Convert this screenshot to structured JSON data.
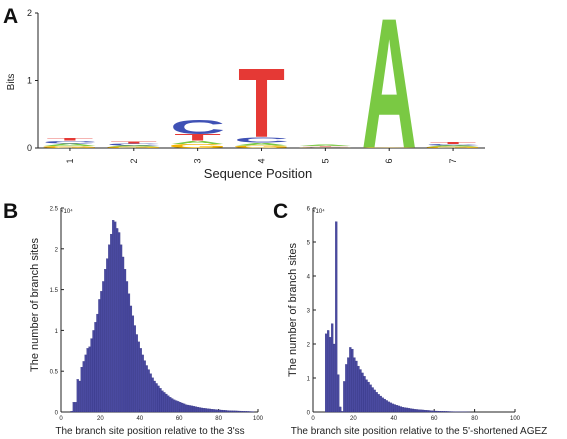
{
  "panels": {
    "a": {
      "letter": "A"
    },
    "b": {
      "letter": "B"
    },
    "c": {
      "letter": "C"
    }
  },
  "chart_data": [
    {
      "panel": "A",
      "type": "sequence-logo",
      "xlabel": "Sequence Position",
      "ylabel": "Bits",
      "ylim": [
        0,
        2
      ],
      "yticks": [
        "0",
        "1",
        "2"
      ],
      "categories": [
        "1",
        "2",
        "3",
        "4",
        "5",
        "6",
        "7"
      ],
      "letter_colors": {
        "A": "#7ac943",
        "C": "#3f51b5",
        "G": "#f4b400",
        "T": "#e53935"
      },
      "positions": [
        {
          "position": "1",
          "letters": [
            {
              "base": "G",
              "bits": 0.03
            },
            {
              "base": "A",
              "bits": 0.04
            },
            {
              "base": "C",
              "bits": 0.04
            },
            {
              "base": "T",
              "bits": 0.04
            }
          ]
        },
        {
          "position": "2",
          "letters": [
            {
              "base": "G",
              "bits": 0.02
            },
            {
              "base": "A",
              "bits": 0.02
            },
            {
              "base": "C",
              "bits": 0.03
            },
            {
              "base": "T",
              "bits": 0.03
            }
          ]
        },
        {
          "position": "3",
          "letters": [
            {
              "base": "G",
              "bits": 0.06
            },
            {
              "base": "A",
              "bits": 0.05
            },
            {
              "base": "T",
              "bits": 0.1
            },
            {
              "base": "C",
              "bits": 0.22
            }
          ]
        },
        {
          "position": "4",
          "letters": [
            {
              "base": "G",
              "bits": 0.04
            },
            {
              "base": "A",
              "bits": 0.04
            },
            {
              "base": "C",
              "bits": 0.08
            },
            {
              "base": "T",
              "bits": 1.05
            }
          ]
        },
        {
          "position": "5",
          "letters": [
            {
              "base": "G",
              "bits": 0.01
            },
            {
              "base": "C",
              "bits": 0.01
            },
            {
              "base": "T",
              "bits": 0.01
            },
            {
              "base": "A",
              "bits": 0.02
            }
          ]
        },
        {
          "position": "6",
          "letters": [
            {
              "base": "G",
              "bits": 0.01
            },
            {
              "base": "A",
              "bits": 1.98
            }
          ]
        },
        {
          "position": "7",
          "letters": [
            {
              "base": "G",
              "bits": 0.02
            },
            {
              "base": "A",
              "bits": 0.02
            },
            {
              "base": "C",
              "bits": 0.02
            },
            {
              "base": "T",
              "bits": 0.03
            }
          ]
        }
      ]
    },
    {
      "panel": "B",
      "type": "bar",
      "xlabel": "The branch site position relative to the 3'ss",
      "ylabel": "The number of branch sites",
      "xlim": [
        0,
        100
      ],
      "ylim": [
        0,
        2.5
      ],
      "exponent_label": "×10⁴",
      "xticks": [
        "0",
        "20",
        "40",
        "60",
        "80",
        "100"
      ],
      "yticks": [
        "0",
        "0.5",
        "1",
        "1.5",
        "2",
        "2.5"
      ],
      "bar_color": "#4a4aa0",
      "bins": {
        "x_start": 5,
        "bin_width": 1
      },
      "values": [
        0.01,
        0.12,
        0.12,
        0.4,
        0.38,
        0.55,
        0.62,
        0.7,
        0.78,
        0.8,
        0.9,
        1.0,
        1.1,
        1.2,
        1.38,
        1.48,
        1.6,
        1.75,
        1.88,
        2.05,
        2.18,
        2.35,
        2.33,
        2.25,
        2.2,
        2.05,
        1.9,
        1.75,
        1.6,
        1.45,
        1.3,
        1.18,
        1.06,
        0.95,
        0.86,
        0.78,
        0.7,
        0.63,
        0.57,
        0.52,
        0.47,
        0.42,
        0.38,
        0.35,
        0.32,
        0.29,
        0.26,
        0.24,
        0.22,
        0.2,
        0.18,
        0.165,
        0.15,
        0.14,
        0.13,
        0.12,
        0.11,
        0.1,
        0.09,
        0.085,
        0.08,
        0.075,
        0.07,
        0.065,
        0.06,
        0.055,
        0.05,
        0.047,
        0.044,
        0.041,
        0.038,
        0.035,
        0.032,
        0.03,
        0.028,
        0.026,
        0.024,
        0.022,
        0.02,
        0.018,
        0.017,
        0.016,
        0.015,
        0.014,
        0.013,
        0.012,
        0.011,
        0.01,
        0.009,
        0.008,
        0.007,
        0.006,
        0.005
      ]
    },
    {
      "panel": "C",
      "type": "bar",
      "xlabel": "The branch site position relative to the 5'-shortened AGEZ",
      "ylabel": "The number of branch sites",
      "xlim": [
        0,
        100
      ],
      "ylim": [
        0,
        6
      ],
      "exponent_label": "×10⁴",
      "xticks": [
        "0",
        "20",
        "40",
        "60",
        "80",
        "100"
      ],
      "yticks": [
        "0",
        "1",
        "2",
        "3",
        "4",
        "5",
        "6"
      ],
      "bar_color": "#4a4aa0",
      "bins": {
        "x_start": 6,
        "bin_width": 1
      },
      "values": [
        2.3,
        2.4,
        2.2,
        2.6,
        2.0,
        5.6,
        1.1,
        0.15,
        0.02,
        0.9,
        1.4,
        1.6,
        1.9,
        1.85,
        1.6,
        1.5,
        1.35,
        1.25,
        1.15,
        1.05,
        0.95,
        0.88,
        0.8,
        0.72,
        0.65,
        0.58,
        0.52,
        0.47,
        0.42,
        0.38,
        0.34,
        0.3,
        0.27,
        0.24,
        0.22,
        0.2,
        0.18,
        0.16,
        0.14,
        0.13,
        0.12,
        0.11,
        0.1,
        0.09,
        0.08,
        0.075,
        0.07,
        0.065,
        0.06,
        0.055,
        0.05,
        0.045,
        0.04,
        0.035,
        0.03,
        0.028,
        0.026,
        0.024,
        0.022,
        0.02,
        0.018,
        0.016,
        0.014,
        0.012,
        0.01,
        0.008,
        0.007,
        0.006,
        0.005,
        0.004,
        0.003,
        0.002
      ]
    }
  ]
}
